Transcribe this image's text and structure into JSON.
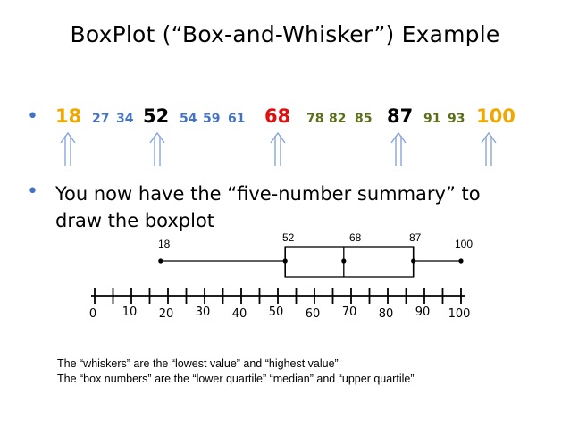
{
  "title": "BoxPlot (“Box-and-Whisker”) Example",
  "bullet_symbol": "•",
  "numbers": [
    {
      "text": "18",
      "color": "#f0a800",
      "size": "big"
    },
    {
      "text": "27",
      "color": "#4472c4",
      "size": "small"
    },
    {
      "text": "34",
      "color": "#4472c4",
      "size": "small"
    },
    {
      "text": "52",
      "color": "#000000",
      "size": "big"
    },
    {
      "text": "54",
      "color": "#4472c4",
      "size": "small"
    },
    {
      "text": "59",
      "color": "#4472c4",
      "size": "small"
    },
    {
      "text": "61",
      "color": "#4472c4",
      "size": "small"
    },
    {
      "text": "68",
      "color": "#e01010",
      "size": "big"
    },
    {
      "text": "78",
      "color": "#5a6e1a",
      "size": "small"
    },
    {
      "text": "82",
      "color": "#5a6e1a",
      "size": "small"
    },
    {
      "text": "85",
      "color": "#5a6e1a",
      "size": "small"
    },
    {
      "text": "87",
      "color": "#000000",
      "size": "big"
    },
    {
      "text": "91",
      "color": "#5a6e1a",
      "size": "small"
    },
    {
      "text": "93",
      "color": "#5a6e1a",
      "size": "small"
    },
    {
      "text": "100",
      "color": "#f0a800",
      "size": "big"
    }
  ],
  "bullet2_line1": "You now have the “five-number summary” to",
  "bullet2_line2": "draw the boxplot",
  "summary": {
    "min": 18,
    "q1": 52,
    "median": 68,
    "q3": 87,
    "max": 100,
    "min_label": "18",
    "q1_label": "52",
    "median_label": "68",
    "q3_label": "87",
    "max_label": "100"
  },
  "number_line": {
    "min": 0,
    "max": 100,
    "minor_step": 5,
    "tick_labels": [
      "0",
      "10",
      "20",
      "30",
      "40",
      "50",
      "60",
      "70",
      "80",
      "90",
      "100"
    ]
  },
  "caption_line1": "The “whiskers” are the “lowest value” and “highest value”",
  "caption_line2": "The “box numbers” are the “lower quartile” “median” and “upper quartile”",
  "colors": {
    "arrow": "#8aa6d8",
    "bullet": "#4472c4"
  }
}
